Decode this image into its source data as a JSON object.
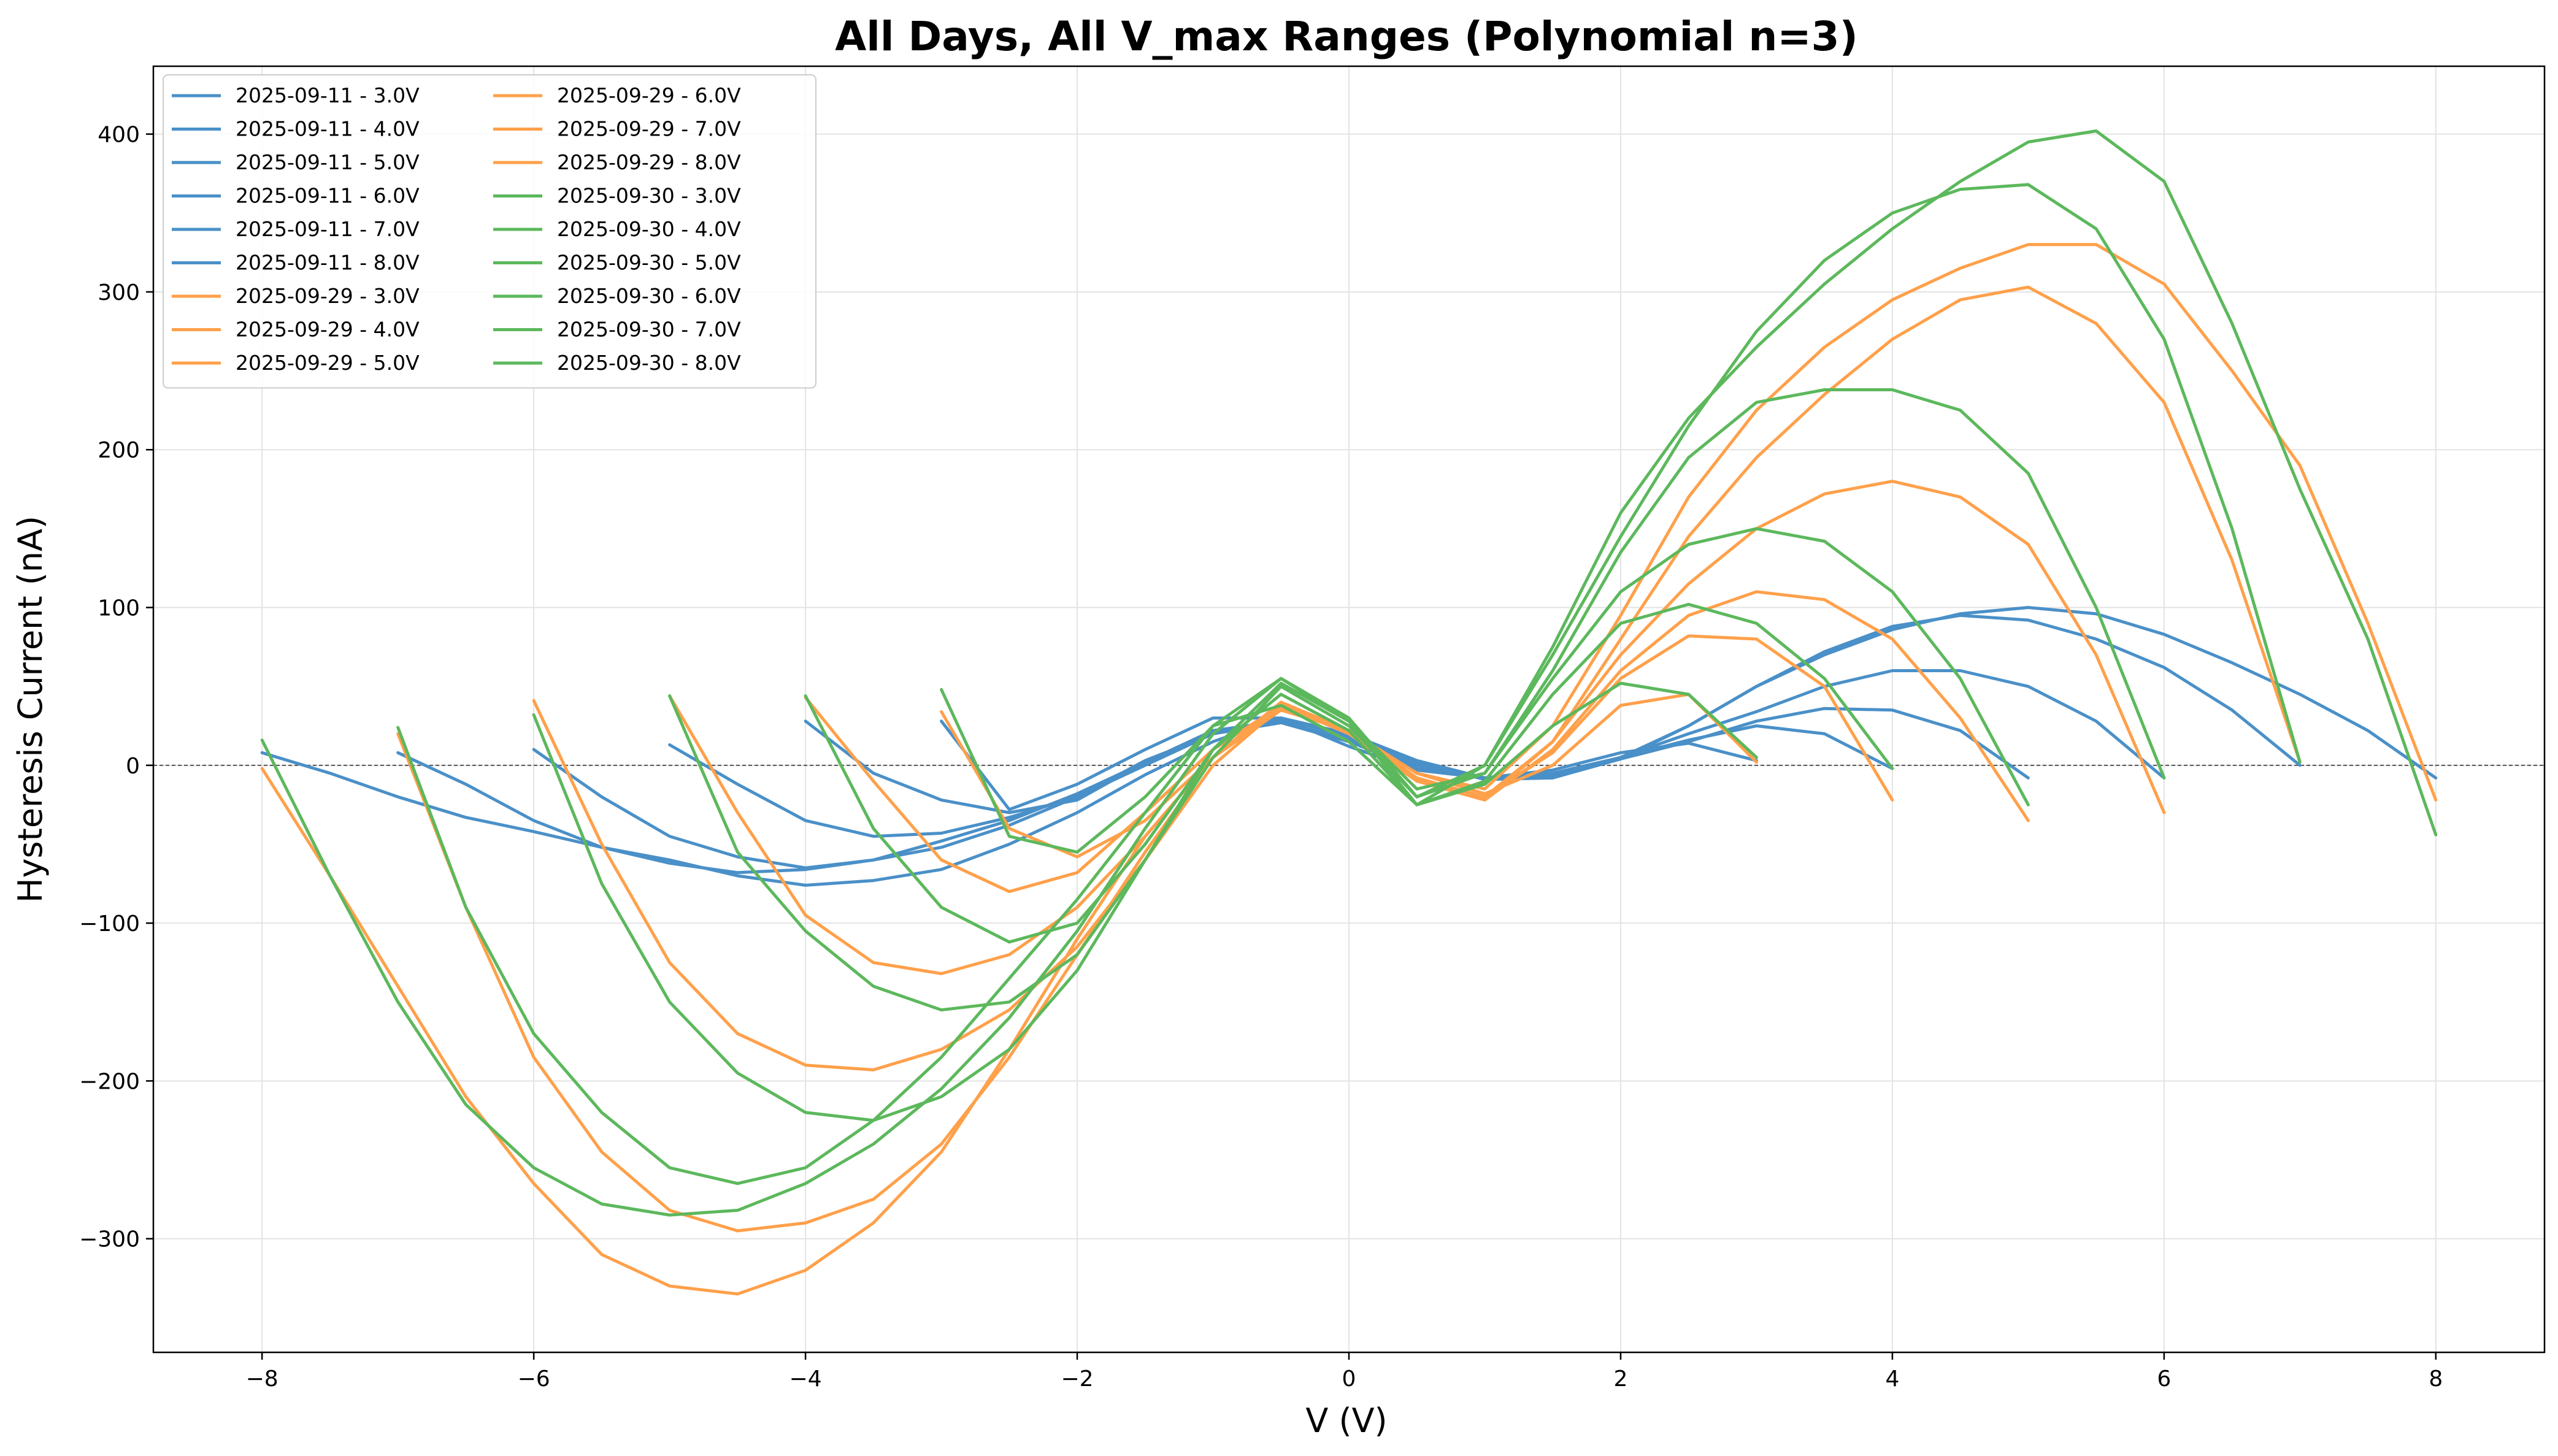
{
  "chart_data": {
    "type": "line",
    "title": "All Days, All V_max Ranges (Polynomial n=3)",
    "xlabel": "V (V)",
    "ylabel": "Hysteresis Current (nA)",
    "xlim": [
      -8.8,
      8.8
    ],
    "ylim": [
      -372,
      443
    ],
    "xticks": [
      -8,
      -6,
      -4,
      -2,
      0,
      2,
      4,
      6,
      8
    ],
    "xtick_labels": [
      "−8",
      "−6",
      "−4",
      "−2",
      "0",
      "2",
      "4",
      "6",
      "8"
    ],
    "yticks": [
      -300,
      -200,
      -100,
      0,
      100,
      200,
      300,
      400
    ],
    "ytick_labels": [
      "−300",
      "−200",
      "−100",
      "0",
      "100",
      "200",
      "300",
      "400"
    ],
    "grid": true,
    "zero_line": true,
    "legend_position": "upper-left",
    "legend_columns": 2,
    "colors": {
      "2025-09-11": "#4a90c8",
      "2025-09-29": "#ffa04a",
      "2025-09-30": "#5cb85c"
    },
    "series": [
      {
        "name": "2025-09-11 - 3.0V",
        "day": "2025-09-11",
        "x": [
          -3,
          -2.5,
          -2,
          -1.5,
          -1,
          -0.5,
          0,
          0.5,
          1,
          1.5,
          2,
          2.5,
          3
        ],
        "y": [
          28,
          -28,
          -12,
          10,
          30,
          30,
          12,
          -3,
          -8,
          -3,
          8,
          14,
          3
        ]
      },
      {
        "name": "2025-09-11 - 4.0V",
        "day": "2025-09-11",
        "x": [
          -4,
          -3.5,
          -3,
          -2.5,
          -2,
          -1.5,
          -1,
          -0.5,
          0,
          0.5,
          1,
          1.5,
          2,
          2.5,
          3,
          3.5,
          4
        ],
        "y": [
          28,
          -5,
          -22,
          -30,
          -22,
          2,
          22,
          28,
          15,
          -2,
          -8,
          -5,
          5,
          16,
          25,
          20,
          -2
        ]
      },
      {
        "name": "2025-09-11 - 5.0V",
        "day": "2025-09-11",
        "x": [
          -5,
          -4.5,
          -4,
          -3.5,
          -3,
          -2.5,
          -2,
          -1.5,
          -1,
          -0.5,
          0,
          0.5,
          1,
          1.5,
          2,
          2.5,
          3,
          3.5,
          4,
          4.5,
          5
        ],
        "y": [
          13,
          -12,
          -35,
          -45,
          -43,
          -33,
          -20,
          3,
          20,
          27,
          15,
          0,
          -8,
          -6,
          4,
          15,
          28,
          36,
          35,
          22,
          -8
        ]
      },
      {
        "name": "2025-09-11 - 6.0V",
        "day": "2025-09-11",
        "x": [
          -6,
          -5.5,
          -5,
          -4.5,
          -4,
          -3.5,
          -3,
          -2.5,
          -2,
          -1.5,
          -1,
          -0.5,
          0,
          0.5,
          1,
          1.5,
          2,
          2.5,
          3,
          3.5,
          4,
          4.5,
          5,
          5.5,
          6
        ],
        "y": [
          10,
          -20,
          -45,
          -58,
          -65,
          -60,
          -48,
          -35,
          -18,
          2,
          20,
          28,
          16,
          0,
          -8,
          -7,
          5,
          20,
          34,
          50,
          60,
          60,
          50,
          28,
          -8
        ]
      },
      {
        "name": "2025-09-11 - 7.0V",
        "day": "2025-09-11",
        "x": [
          -7,
          -6.5,
          -6,
          -5.5,
          -5,
          -4.5,
          -4,
          -3.5,
          -3,
          -2.5,
          -2,
          -1.5,
          -1,
          -0.5,
          0,
          0.5,
          1,
          1.5,
          2,
          2.5,
          3,
          3.5,
          4,
          4.5,
          5,
          5.5,
          6,
          6.5,
          7
        ],
        "y": [
          8,
          -12,
          -35,
          -52,
          -62,
          -68,
          -66,
          -60,
          -52,
          -38,
          -20,
          0,
          20,
          30,
          18,
          2,
          -9,
          -8,
          5,
          25,
          50,
          72,
          88,
          95,
          92,
          80,
          62,
          35,
          0
        ]
      },
      {
        "name": "2025-09-11 - 8.0V",
        "day": "2025-09-11",
        "x": [
          -8,
          -7.5,
          -7,
          -6.5,
          -6,
          -5.5,
          -5,
          -4.5,
          -4,
          -3.5,
          -3,
          -2.5,
          -2,
          -1.5,
          -1,
          -0.5,
          0,
          0.5,
          1,
          1.5,
          2,
          2.5,
          3,
          3.5,
          4,
          4.5,
          5,
          5.5,
          6,
          6.5,
          7,
          7.5,
          8
        ],
        "y": [
          8,
          -5,
          -20,
          -33,
          -42,
          -52,
          -60,
          -70,
          -76,
          -73,
          -66,
          -50,
          -30,
          -6,
          15,
          30,
          20,
          3,
          -8,
          -8,
          4,
          25,
          50,
          70,
          86,
          96,
          100,
          96,
          83,
          65,
          45,
          22,
          -8
        ]
      },
      {
        "name": "2025-09-29 - 3.0V",
        "day": "2025-09-29",
        "x": [
          -3,
          -2.5,
          -2,
          -1.5,
          -1,
          -0.5,
          0,
          0.5,
          1,
          1.5,
          2,
          2.5,
          3
        ],
        "y": [
          34,
          -40,
          -58,
          -35,
          5,
          35,
          22,
          -5,
          -18,
          0,
          38,
          45,
          2
        ]
      },
      {
        "name": "2025-09-29 - 4.0V",
        "day": "2025-09-29",
        "x": [
          -4,
          -3.5,
          -3,
          -2.5,
          -2,
          -1.5,
          -1,
          -0.5,
          0,
          0.5,
          1,
          1.5,
          2,
          2.5,
          3,
          3.5,
          4
        ],
        "y": [
          43,
          -10,
          -60,
          -80,
          -68,
          -30,
          10,
          38,
          22,
          -8,
          -20,
          8,
          55,
          82,
          80,
          50,
          -22
        ]
      },
      {
        "name": "2025-09-29 - 5.0V",
        "day": "2025-09-29",
        "x": [
          -5,
          -4.5,
          -4,
          -3.5,
          -3,
          -2.5,
          -2,
          -1.5,
          -1,
          -0.5,
          0,
          0.5,
          1,
          1.5,
          2,
          2.5,
          3,
          3.5,
          4,
          4.5,
          5
        ],
        "y": [
          44,
          -30,
          -95,
          -125,
          -132,
          -120,
          -90,
          -45,
          5,
          38,
          20,
          -10,
          -22,
          10,
          60,
          95,
          110,
          105,
          80,
          30,
          -35
        ]
      },
      {
        "name": "2025-09-29 - 6.0V",
        "day": "2025-09-29",
        "x": [
          -6,
          -5.5,
          -5,
          -4.5,
          -4,
          -3.5,
          -3,
          -2.5,
          -2,
          -1.5,
          -1,
          -0.5,
          0,
          0.5,
          1,
          1.5,
          2,
          2.5,
          3,
          3.5,
          4,
          4.5,
          5,
          5.5,
          6
        ],
        "y": [
          41,
          -50,
          -125,
          -170,
          -190,
          -193,
          -180,
          -155,
          -115,
          -60,
          0,
          37,
          22,
          -8,
          -22,
          15,
          70,
          115,
          150,
          172,
          180,
          170,
          140,
          70,
          -30
        ]
      },
      {
        "name": "2025-09-29 - 7.0V",
        "day": "2025-09-29",
        "x": [
          -7,
          -6.5,
          -6,
          -5.5,
          -5,
          -4.5,
          -4,
          -3.5,
          -3,
          -2.5,
          -2,
          -1.5,
          -1,
          -0.5,
          0,
          0.5,
          1,
          1.5,
          2,
          2.5,
          3,
          3.5,
          4,
          4.5,
          5,
          5.5,
          6,
          6.5,
          7
        ],
        "y": [
          20,
          -90,
          -185,
          -245,
          -282,
          -295,
          -290,
          -275,
          -240,
          -185,
          -120,
          -55,
          5,
          38,
          22,
          -8,
          -20,
          15,
          80,
          145,
          195,
          235,
          270,
          295,
          303,
          280,
          230,
          130,
          2
        ]
      },
      {
        "name": "2025-09-29 - 8.0V",
        "day": "2025-09-29",
        "x": [
          -8,
          -7.5,
          -7,
          -6.5,
          -6,
          -5.5,
          -5,
          -4.5,
          -4,
          -3.5,
          -3,
          -2.5,
          -2,
          -1.5,
          -1,
          -0.5,
          0,
          0.5,
          1,
          1.5,
          2,
          2.5,
          3,
          3.5,
          4,
          4.5,
          5,
          5.5,
          6,
          6.5,
          7,
          7.5,
          8
        ],
        "y": [
          -2,
          -70,
          -140,
          -210,
          -265,
          -310,
          -330,
          -335,
          -320,
          -290,
          -245,
          -180,
          -110,
          -45,
          5,
          40,
          22,
          -5,
          -15,
          25,
          95,
          170,
          225,
          265,
          295,
          315,
          330,
          330,
          305,
          250,
          190,
          90,
          -22
        ]
      },
      {
        "name": "2025-09-30 - 3.0V",
        "day": "2025-09-30",
        "x": [
          -3,
          -2.5,
          -2,
          -1.5,
          -1,
          -0.5,
          0,
          0.5,
          1,
          1.5,
          2,
          2.5,
          3
        ],
        "y": [
          48,
          -45,
          -55,
          -20,
          25,
          38,
          15,
          -25,
          -12,
          25,
          52,
          45,
          5
        ]
      },
      {
        "name": "2025-09-30 - 4.0V",
        "day": "2025-09-30",
        "x": [
          -4,
          -3.5,
          -3,
          -2.5,
          -2,
          -1.5,
          -1,
          -0.5,
          0,
          0.5,
          1,
          1.5,
          2,
          2.5,
          3,
          3.5,
          4
        ],
        "y": [
          44,
          -40,
          -90,
          -112,
          -100,
          -50,
          10,
          45,
          22,
          -25,
          -10,
          45,
          90,
          102,
          90,
          55,
          -2
        ]
      },
      {
        "name": "2025-09-30 - 5.0V",
        "day": "2025-09-30",
        "x": [
          -5,
          -4.5,
          -4,
          -3.5,
          -3,
          -2.5,
          -2,
          -1.5,
          -1,
          -0.5,
          0,
          0.5,
          1,
          1.5,
          2,
          2.5,
          3,
          3.5,
          4,
          4.5,
          5
        ],
        "y": [
          44,
          -55,
          -105,
          -140,
          -155,
          -150,
          -120,
          -60,
          5,
          50,
          25,
          -20,
          -5,
          55,
          110,
          140,
          150,
          142,
          110,
          55,
          -25
        ]
      },
      {
        "name": "2025-09-30 - 6.0V",
        "day": "2025-09-30",
        "x": [
          -6,
          -5.5,
          -5,
          -4.5,
          -4,
          -3.5,
          -3,
          -2.5,
          -2,
          -1.5,
          -1,
          -0.5,
          0,
          0.5,
          1,
          1.5,
          2,
          2.5,
          3,
          3.5,
          4,
          4.5,
          5,
          5.5,
          6
        ],
        "y": [
          32,
          -75,
          -150,
          -195,
          -220,
          -225,
          -210,
          -180,
          -130,
          -60,
          10,
          52,
          28,
          -15,
          -5,
          60,
          135,
          195,
          230,
          238,
          238,
          225,
          185,
          100,
          -8
        ]
      },
      {
        "name": "2025-09-30 - 7.0V",
        "day": "2025-09-30",
        "x": [
          -7,
          -6.5,
          -6,
          -5.5,
          -5,
          -4.5,
          -4,
          -3.5,
          -3,
          -2.5,
          -2,
          -1.5,
          -1,
          -0.5,
          0,
          0.5,
          1,
          1.5,
          2,
          2.5,
          3,
          3.5,
          4,
          4.5,
          5,
          5.5,
          6,
          6.5,
          7
        ],
        "y": [
          24,
          -90,
          -170,
          -220,
          -255,
          -265,
          -255,
          -225,
          -185,
          -135,
          -85,
          -30,
          25,
          55,
          30,
          -20,
          0,
          70,
          145,
          215,
          275,
          320,
          350,
          365,
          368,
          340,
          270,
          150,
          2
        ]
      },
      {
        "name": "2025-09-30 - 8.0V",
        "day": "2025-09-30",
        "x": [
          -8,
          -7.5,
          -7,
          -6.5,
          -6,
          -5.5,
          -5,
          -4.5,
          -4,
          -3.5,
          -3,
          -2.5,
          -2,
          -1.5,
          -1,
          -0.5,
          0,
          0.5,
          1,
          1.5,
          2,
          2.5,
          3,
          3.5,
          4,
          4.5,
          5,
          5.5,
          6,
          6.5,
          7,
          7.5,
          8
        ],
        "y": [
          16,
          -70,
          -150,
          -215,
          -255,
          -278,
          -285,
          -282,
          -265,
          -240,
          -205,
          -160,
          -105,
          -40,
          20,
          55,
          28,
          -25,
          0,
          75,
          160,
          220,
          265,
          305,
          340,
          370,
          395,
          402,
          370,
          280,
          175,
          80,
          -44
        ]
      }
    ]
  }
}
